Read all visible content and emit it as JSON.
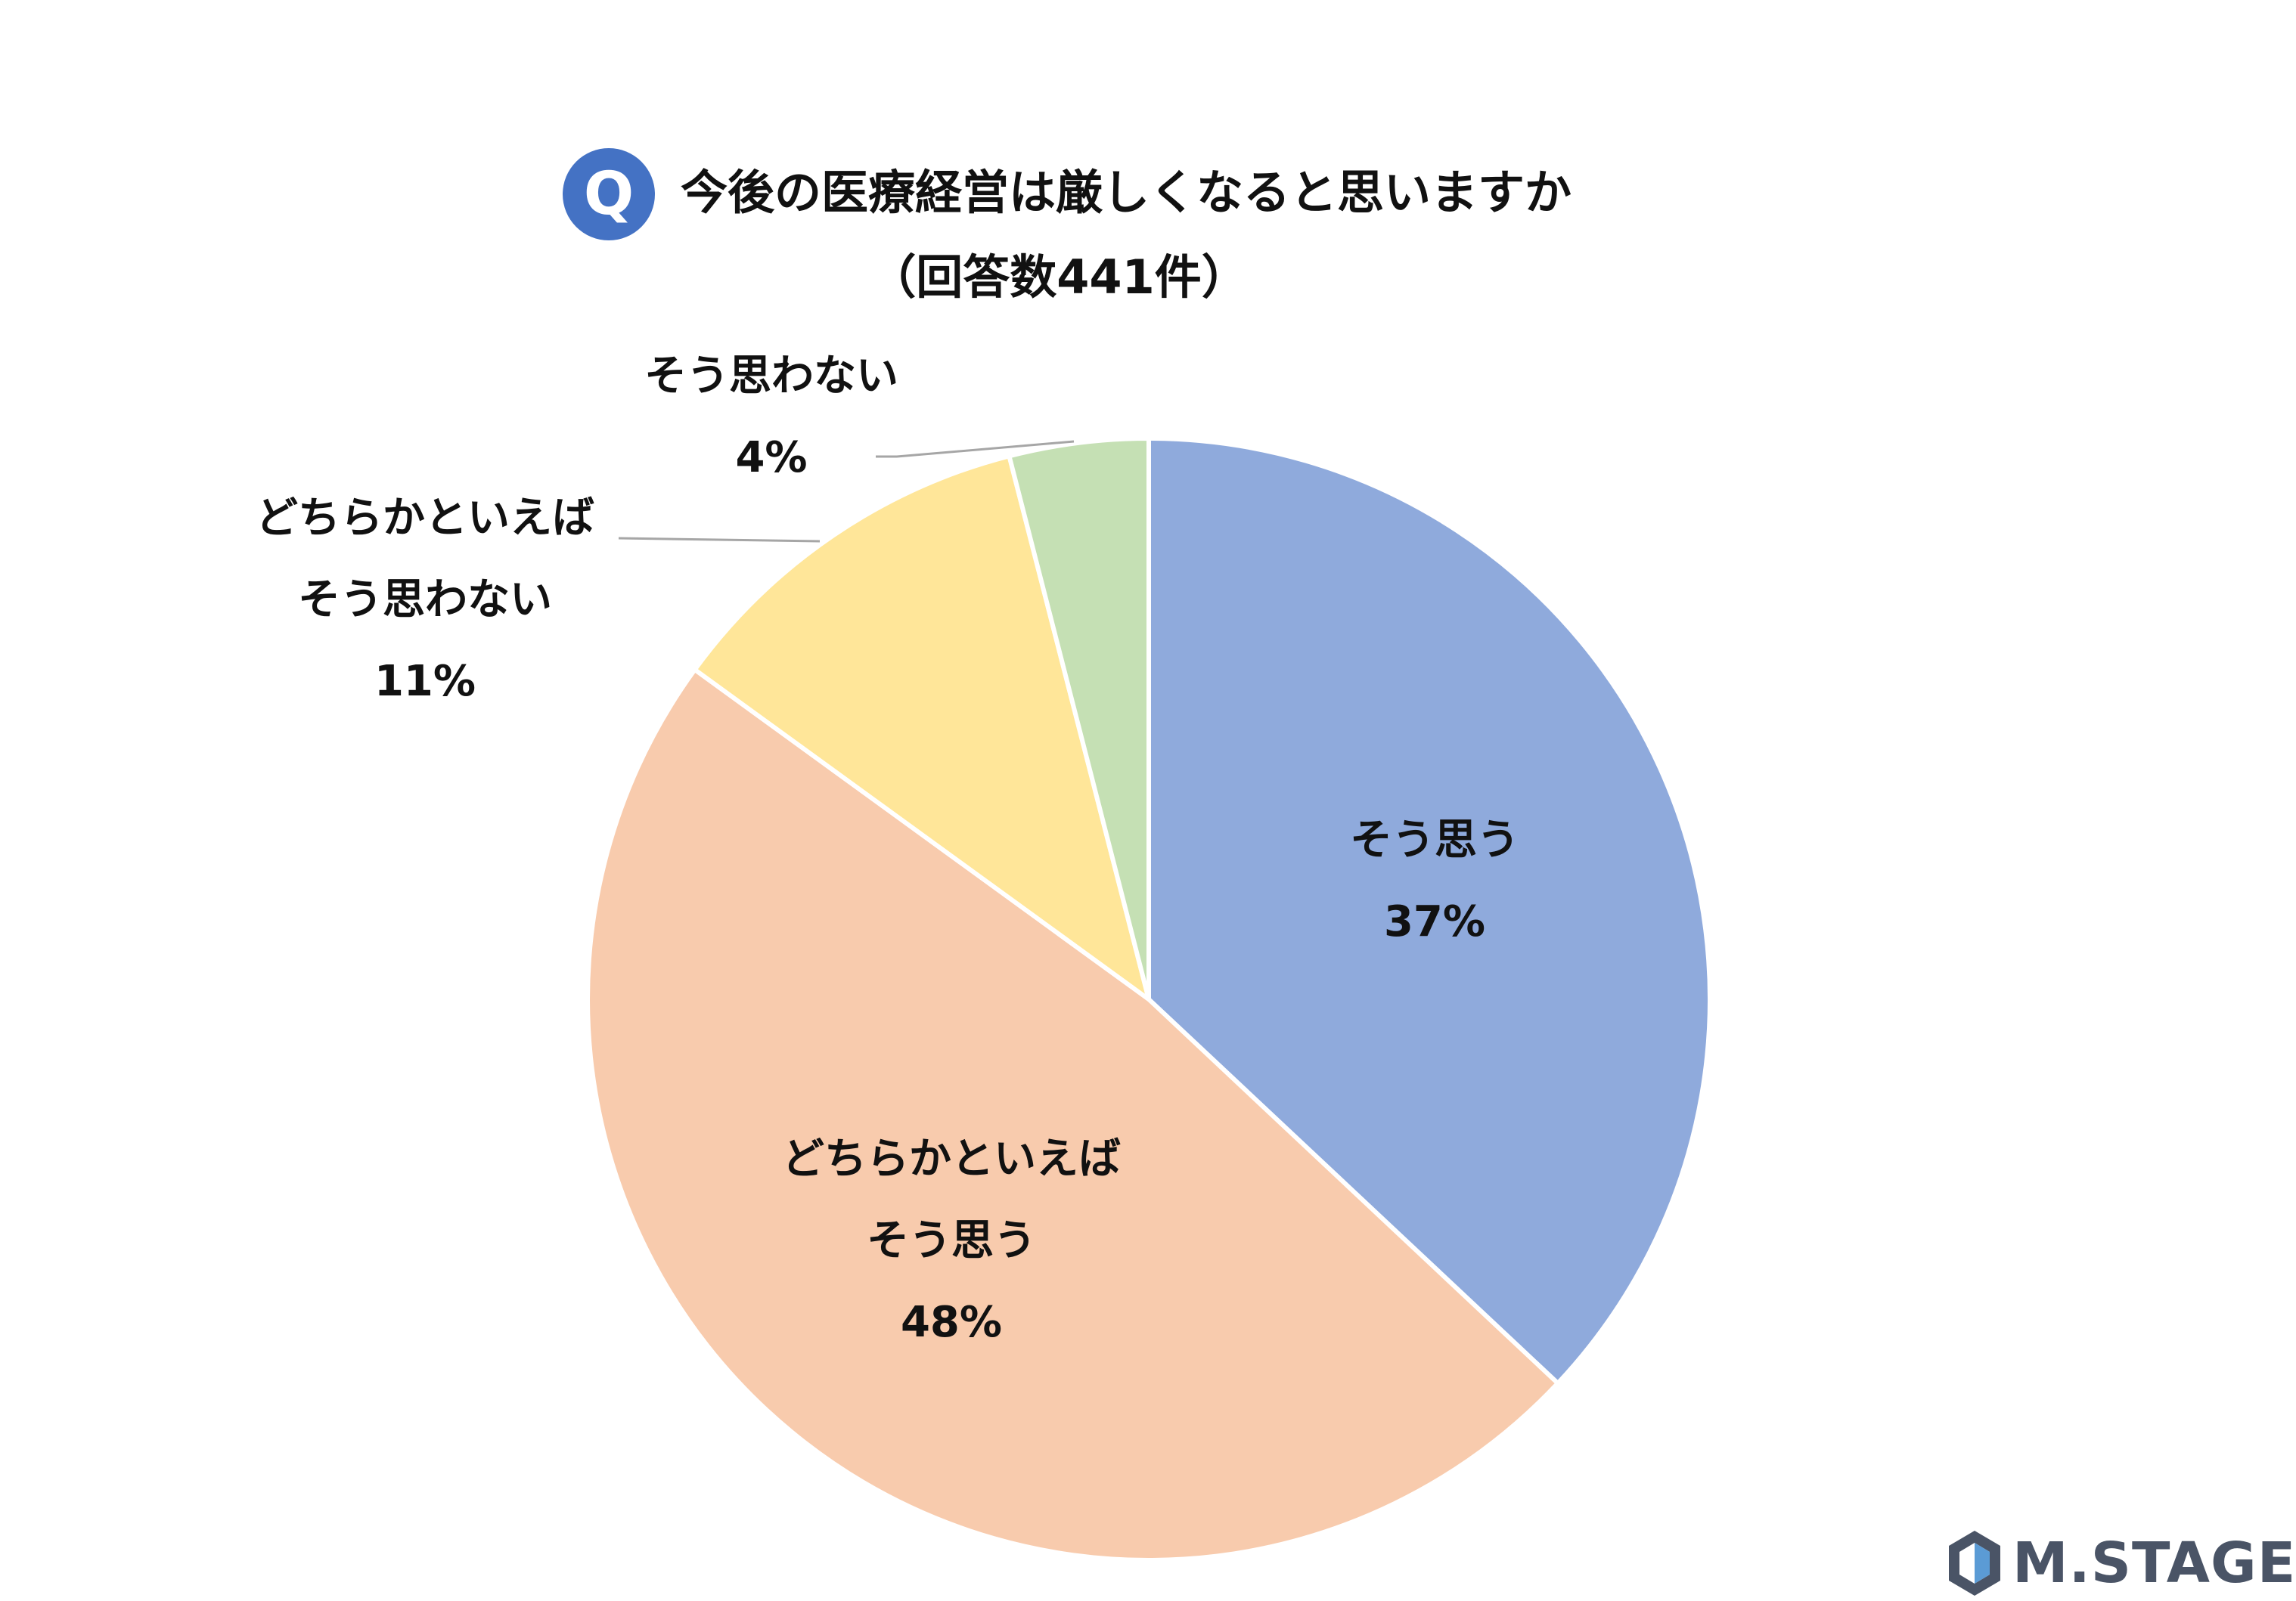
{
  "header": {
    "badge": "Q",
    "title": "今後の医療経営は厳しくなると思いますか",
    "subtitle": "（回答数441件）"
  },
  "chart_data": {
    "type": "pie",
    "start_angle_deg": 0,
    "direction": "clockwise",
    "slices": [
      {
        "label_lines": [
          "そう思う"
        ],
        "value": 37,
        "value_label": "37%",
        "color": "#8faadc"
      },
      {
        "label_lines": [
          "どちらかといえば",
          "そう思う"
        ],
        "value": 48,
        "value_label": "48%",
        "color": "#f8cbad"
      },
      {
        "label_lines": [
          "どちらかといえば",
          "そう思わない"
        ],
        "value": 11,
        "value_label": "11%",
        "color": "#ffe699"
      },
      {
        "label_lines": [
          "そう思わない"
        ],
        "value": 4,
        "value_label": "4%",
        "color": "#c5e0b4"
      }
    ]
  },
  "logo": {
    "text": "M.STAGE",
    "colors": {
      "dark": "#4a5466",
      "light": "#5b9bd5"
    }
  }
}
